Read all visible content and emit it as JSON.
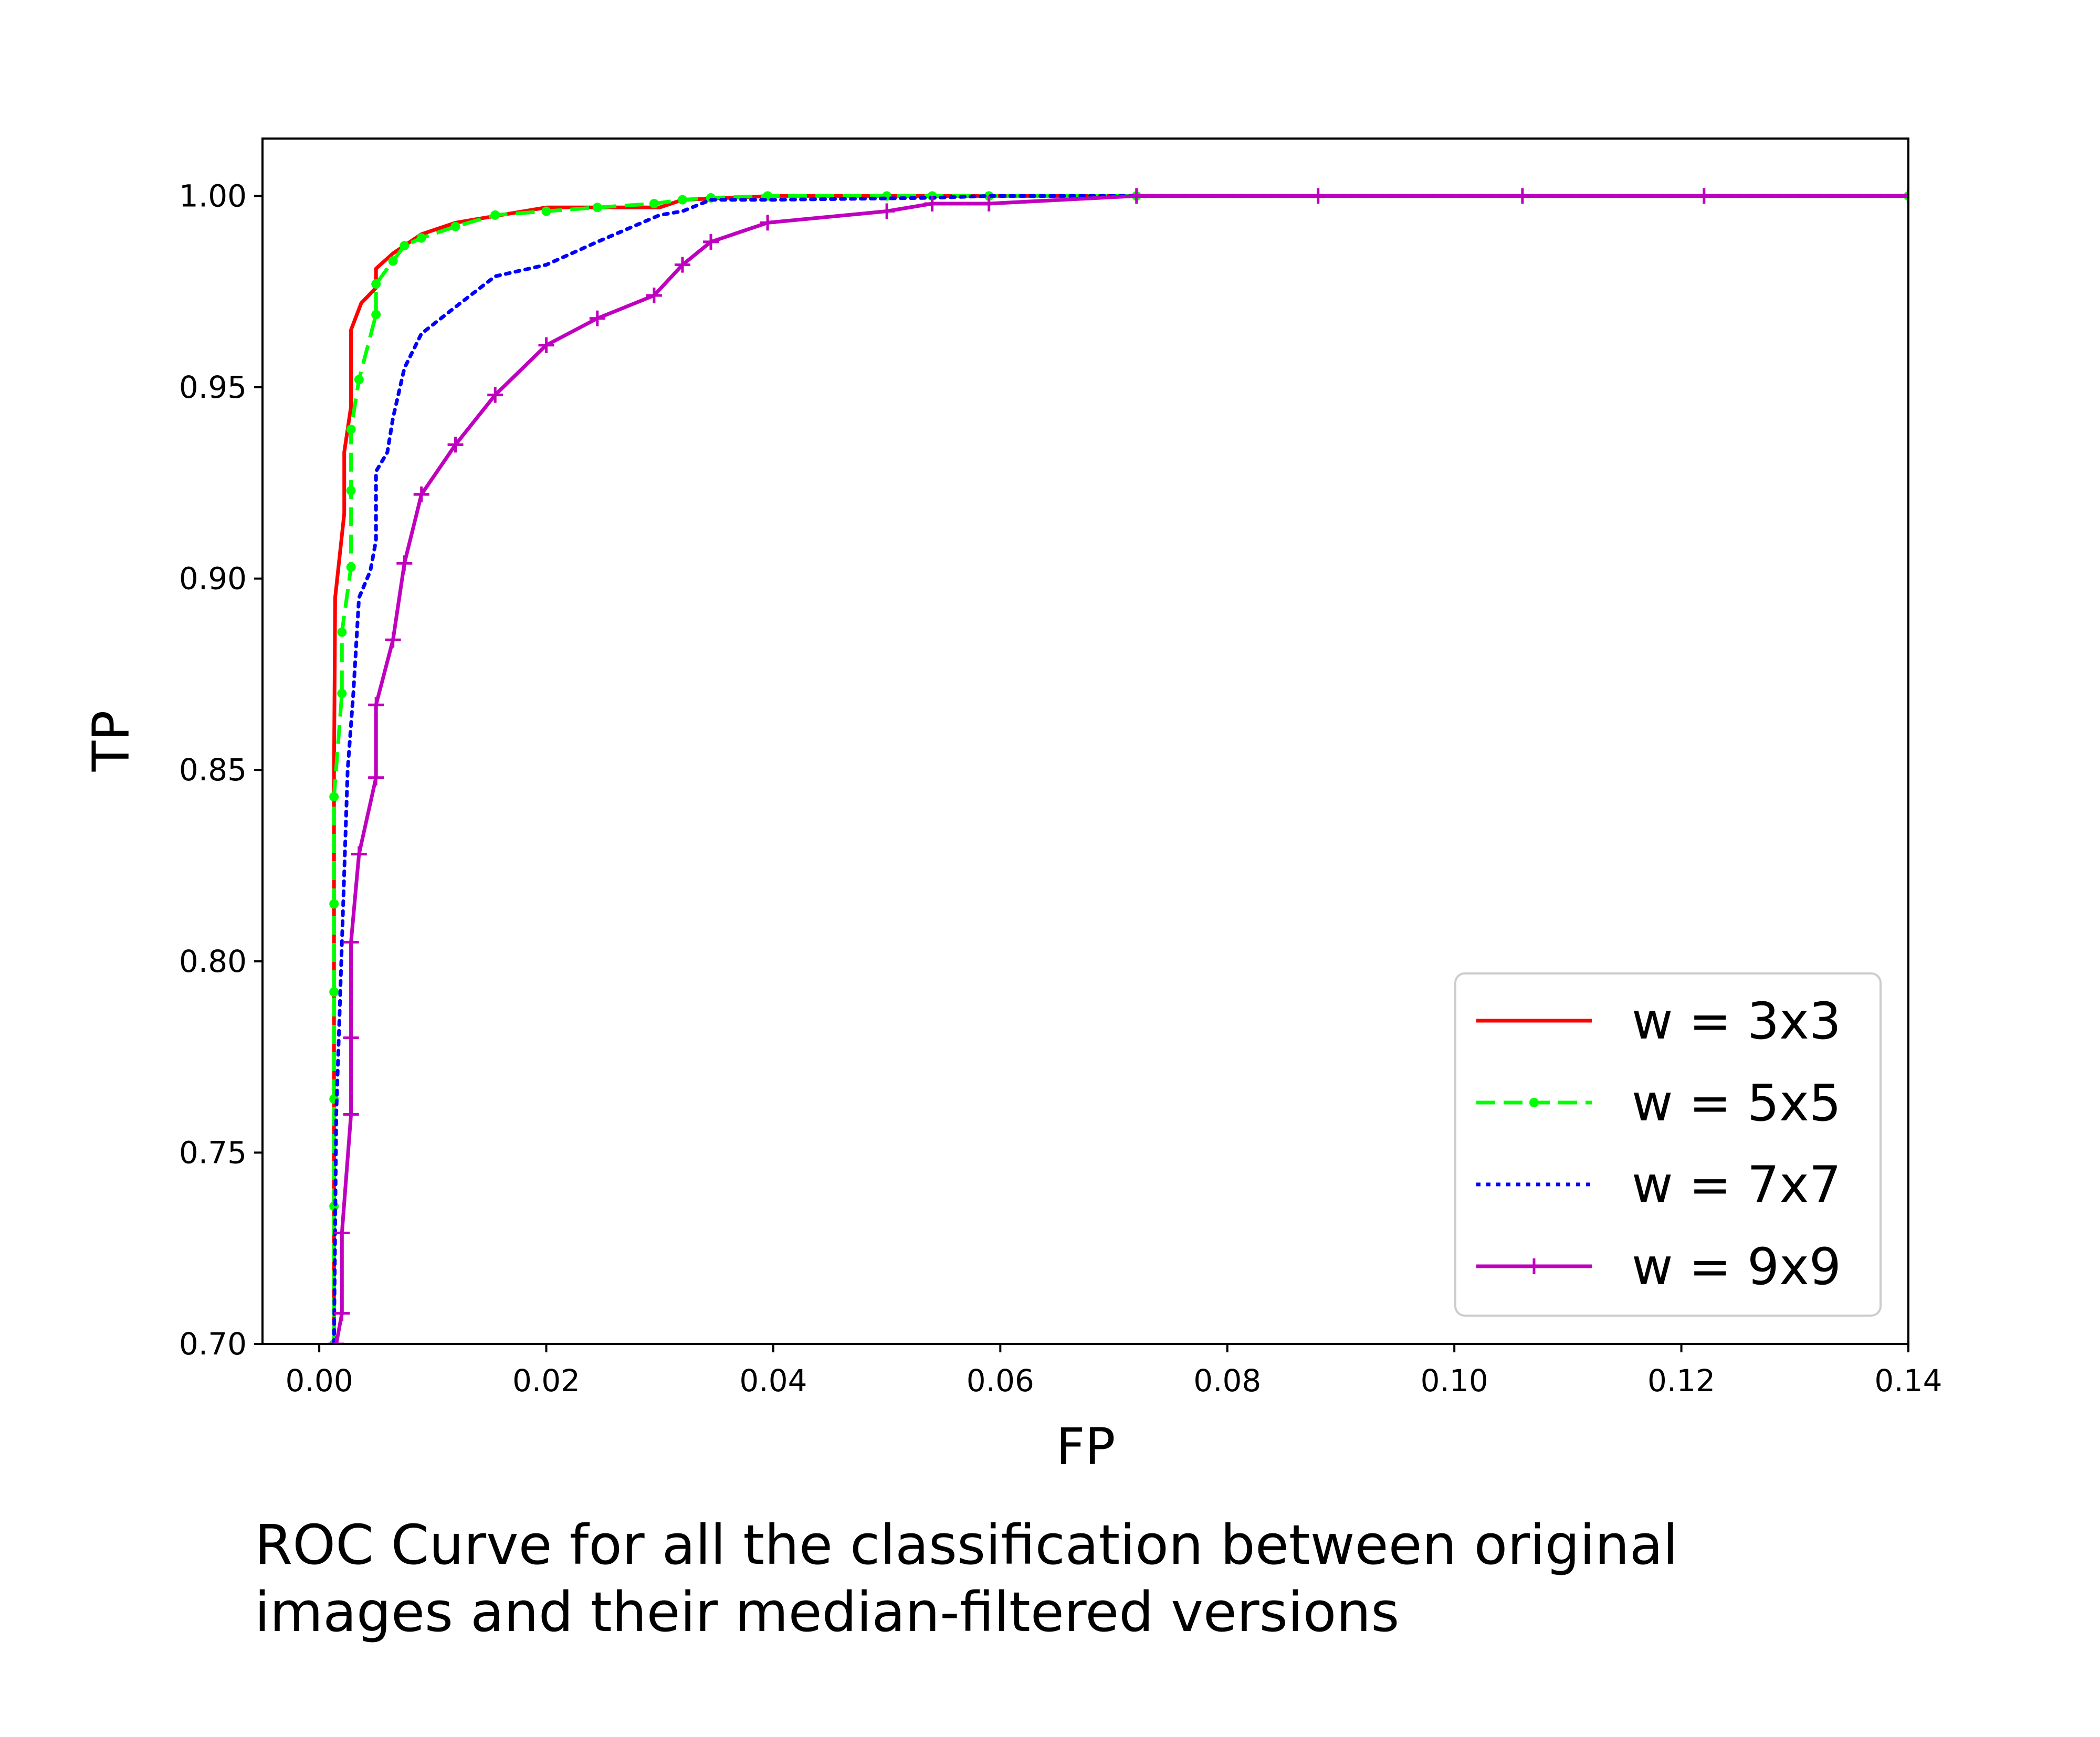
{
  "chart_data": {
    "type": "line",
    "xlabel": "FP",
    "ylabel": "TP",
    "xlim": [
      -0.005,
      0.14
    ],
    "ylim": [
      0.7,
      1.015
    ],
    "xticks": [
      "0.00",
      "0.02",
      "0.04",
      "0.06",
      "0.08",
      "0.10",
      "0.12",
      "0.14"
    ],
    "yticks": [
      "0.70",
      "0.75",
      "0.80",
      "0.85",
      "0.90",
      "0.95",
      "1.00"
    ],
    "grid": false,
    "legend_position": "lower-right",
    "series": [
      {
        "name": "w = 3x3",
        "color": "#ff0000",
        "style": "solid",
        "marker": "none",
        "points": [
          [
            0.0013,
            0.7
          ],
          [
            0.0013,
            0.85
          ],
          [
            0.0014,
            0.895
          ],
          [
            0.0022,
            0.917
          ],
          [
            0.0022,
            0.933
          ],
          [
            0.0028,
            0.945
          ],
          [
            0.0028,
            0.965
          ],
          [
            0.0037,
            0.972
          ],
          [
            0.005,
            0.976
          ],
          [
            0.005,
            0.981
          ],
          [
            0.0065,
            0.985
          ],
          [
            0.009,
            0.99
          ],
          [
            0.012,
            0.993
          ],
          [
            0.016,
            0.995
          ],
          [
            0.02,
            0.997
          ],
          [
            0.03,
            0.997
          ],
          [
            0.032,
            0.999
          ],
          [
            0.04,
            1.0
          ],
          [
            0.072,
            1.0
          ],
          [
            0.14,
            1.0
          ]
        ]
      },
      {
        "name": "w = 5x5",
        "color": "#00ff00",
        "style": "dashed",
        "marker": "dot",
        "points": [
          [
            0.0013,
            0.7
          ],
          [
            0.0013,
            0.736
          ],
          [
            0.0013,
            0.764
          ],
          [
            0.0013,
            0.792
          ],
          [
            0.0013,
            0.815
          ],
          [
            0.0013,
            0.843
          ],
          [
            0.002,
            0.87
          ],
          [
            0.002,
            0.886
          ],
          [
            0.0028,
            0.903
          ],
          [
            0.0028,
            0.923
          ],
          [
            0.0028,
            0.939
          ],
          [
            0.0035,
            0.952
          ],
          [
            0.005,
            0.969
          ],
          [
            0.005,
            0.977
          ],
          [
            0.0065,
            0.983
          ],
          [
            0.0075,
            0.987
          ],
          [
            0.009,
            0.989
          ],
          [
            0.012,
            0.992
          ],
          [
            0.0155,
            0.995
          ],
          [
            0.02,
            0.996
          ],
          [
            0.0245,
            0.997
          ],
          [
            0.0295,
            0.998
          ],
          [
            0.032,
            0.999
          ],
          [
            0.0345,
            0.9995
          ],
          [
            0.0395,
            1.0
          ],
          [
            0.05,
            1.0
          ],
          [
            0.054,
            1.0
          ],
          [
            0.059,
            1.0
          ],
          [
            0.072,
            1.0
          ],
          [
            0.14,
            1.0
          ]
        ]
      },
      {
        "name": "w = 7x7",
        "color": "#0000ff",
        "style": "dotted",
        "marker": "none",
        "points": [
          [
            0.0013,
            0.7
          ],
          [
            0.0015,
            0.76
          ],
          [
            0.002,
            0.805
          ],
          [
            0.0025,
            0.85
          ],
          [
            0.003,
            0.87
          ],
          [
            0.0035,
            0.895
          ],
          [
            0.0045,
            0.902
          ],
          [
            0.005,
            0.91
          ],
          [
            0.005,
            0.928
          ],
          [
            0.006,
            0.933
          ],
          [
            0.0065,
            0.942
          ],
          [
            0.0075,
            0.955
          ],
          [
            0.009,
            0.964
          ],
          [
            0.012,
            0.971
          ],
          [
            0.0155,
            0.979
          ],
          [
            0.02,
            0.982
          ],
          [
            0.0245,
            0.988
          ],
          [
            0.03,
            0.995
          ],
          [
            0.032,
            0.996
          ],
          [
            0.0345,
            0.999
          ],
          [
            0.04,
            0.999
          ],
          [
            0.054,
            0.9995
          ],
          [
            0.059,
            1.0
          ],
          [
            0.072,
            1.0
          ],
          [
            0.14,
            1.0
          ]
        ]
      },
      {
        "name": "w = 9x9",
        "color": "#bf00bf",
        "style": "solid",
        "marker": "plus",
        "points": [
          [
            0.0015,
            0.7
          ],
          [
            0.002,
            0.708
          ],
          [
            0.002,
            0.729
          ],
          [
            0.0028,
            0.76
          ],
          [
            0.0028,
            0.78
          ],
          [
            0.0028,
            0.805
          ],
          [
            0.0035,
            0.828
          ],
          [
            0.005,
            0.848
          ],
          [
            0.005,
            0.867
          ],
          [
            0.0065,
            0.884
          ],
          [
            0.0075,
            0.904
          ],
          [
            0.009,
            0.922
          ],
          [
            0.012,
            0.935
          ],
          [
            0.0155,
            0.948
          ],
          [
            0.02,
            0.961
          ],
          [
            0.0245,
            0.968
          ],
          [
            0.0295,
            0.974
          ],
          [
            0.032,
            0.982
          ],
          [
            0.0345,
            0.988
          ],
          [
            0.0395,
            0.993
          ],
          [
            0.05,
            0.996
          ],
          [
            0.054,
            0.998
          ],
          [
            0.059,
            0.998
          ],
          [
            0.072,
            1.0
          ],
          [
            0.088,
            1.0
          ],
          [
            0.106,
            1.0
          ],
          [
            0.122,
            1.0
          ],
          [
            0.14,
            1.0
          ]
        ]
      }
    ]
  },
  "caption": {
    "line1": "ROC Curve for all the classification between original",
    "line2": "images and their median-filtered versions"
  }
}
